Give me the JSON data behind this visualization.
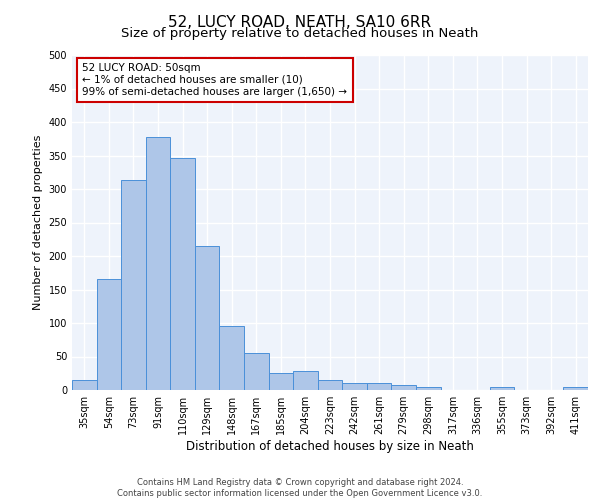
{
  "title1": "52, LUCY ROAD, NEATH, SA10 6RR",
  "title2": "Size of property relative to detached houses in Neath",
  "xlabel": "Distribution of detached houses by size in Neath",
  "ylabel": "Number of detached properties",
  "categories": [
    "35sqm",
    "54sqm",
    "73sqm",
    "91sqm",
    "110sqm",
    "129sqm",
    "148sqm",
    "167sqm",
    "185sqm",
    "204sqm",
    "223sqm",
    "242sqm",
    "261sqm",
    "279sqm",
    "298sqm",
    "317sqm",
    "336sqm",
    "355sqm",
    "373sqm",
    "392sqm",
    "411sqm"
  ],
  "values": [
    15,
    165,
    313,
    377,
    346,
    215,
    95,
    55,
    25,
    29,
    15,
    10,
    10,
    7,
    5,
    0,
    0,
    5,
    0,
    0,
    5
  ],
  "bar_color": "#aec6e8",
  "bar_edge_color": "#4a90d9",
  "bg_color": "#eef3fb",
  "grid_color": "#ffffff",
  "annotation_box_color": "#ffffff",
  "annotation_border_color": "#cc0000",
  "annotation_text": "52 LUCY ROAD: 50sqm\n← 1% of detached houses are smaller (10)\n99% of semi-detached houses are larger (1,650) →",
  "footer1": "Contains HM Land Registry data © Crown copyright and database right 2024.",
  "footer2": "Contains public sector information licensed under the Open Government Licence v3.0.",
  "ylim": [
    0,
    500
  ],
  "yticks": [
    0,
    50,
    100,
    150,
    200,
    250,
    300,
    350,
    400,
    450,
    500
  ],
  "title1_fontsize": 11,
  "title2_fontsize": 9.5,
  "xlabel_fontsize": 8.5,
  "ylabel_fontsize": 8,
  "tick_fontsize": 7,
  "annotation_fontsize": 7.5,
  "footer_fontsize": 6
}
